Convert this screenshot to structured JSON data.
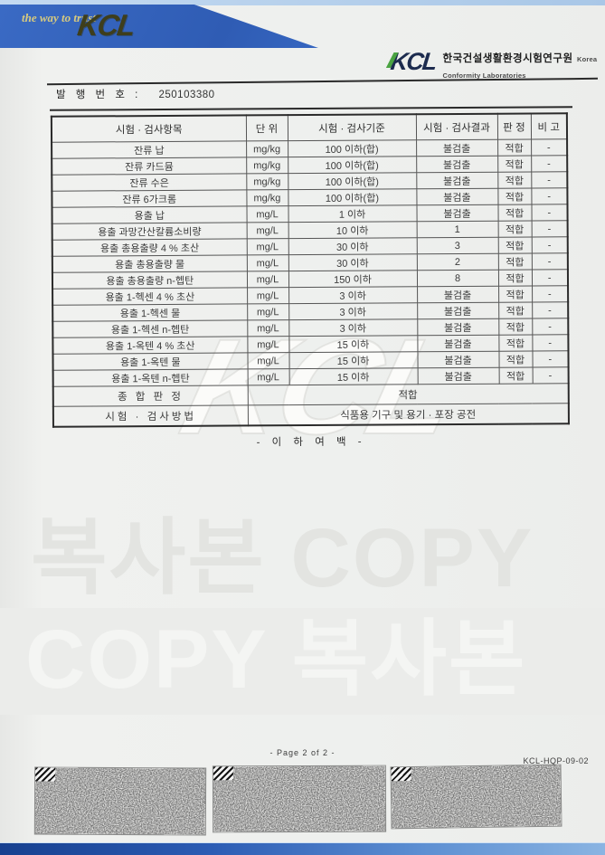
{
  "banner": {
    "tagline": "the way to trust",
    "logo_text": "KCL"
  },
  "org": {
    "logo_text": "KCL",
    "name_ko": "한국건설생활환경시험연구원",
    "name_en": "Korea Conformity Laboratories"
  },
  "issue": {
    "label": "발 행 번 호 :",
    "number": "250103380"
  },
  "table": {
    "headers": [
      "시험 · 검사항목",
      "단 위",
      "시험 · 검사기준",
      "시험 · 검사결과",
      "판 정",
      "비 고"
    ],
    "rows": [
      [
        "잔류 납",
        "mg/kg",
        "100 이하(합)",
        "불검출",
        "적합",
        "-"
      ],
      [
        "잔류 카드뮴",
        "mg/kg",
        "100 이하(합)",
        "불검출",
        "적합",
        "-"
      ],
      [
        "잔류 수은",
        "mg/kg",
        "100 이하(합)",
        "불검출",
        "적합",
        "-"
      ],
      [
        "잔류 6가크롬",
        "mg/kg",
        "100 이하(합)",
        "불검출",
        "적합",
        "-"
      ],
      [
        "용출 납",
        "mg/L",
        "1 이하",
        "불검출",
        "적합",
        "-"
      ],
      [
        "용출 과망간산칼륨소비량",
        "mg/L",
        "10 이하",
        "1",
        "적합",
        "-"
      ],
      [
        "용출 총용출량 4 % 초산",
        "mg/L",
        "30 이하",
        "3",
        "적합",
        "-"
      ],
      [
        "용출 총용출량 물",
        "mg/L",
        "30 이하",
        "2",
        "적합",
        "-"
      ],
      [
        "용출 총용출량 n-헵탄",
        "mg/L",
        "150 이하",
        "8",
        "적합",
        "-"
      ],
      [
        "용출 1-헥센 4 % 초산",
        "mg/L",
        "3 이하",
        "불검출",
        "적합",
        "-"
      ],
      [
        "용출 1-헥센 물",
        "mg/L",
        "3 이하",
        "불검출",
        "적합",
        "-"
      ],
      [
        "용출 1-헥센 n-헵탄",
        "mg/L",
        "3 이하",
        "불검출",
        "적합",
        "-"
      ],
      [
        "용출 1-옥텐 4 % 초산",
        "mg/L",
        "15 이하",
        "불검출",
        "적합",
        "-"
      ],
      [
        "용출 1-옥텐 물",
        "mg/L",
        "15 이하",
        "불검출",
        "적합",
        "-"
      ],
      [
        "용출 1-옥텐 n-헵탄",
        "mg/L",
        "15 이하",
        "불검출",
        "적합",
        "-"
      ]
    ],
    "summary_label": "종 합 판 정",
    "summary_value": "적합",
    "method_label": "시험 · 검사방법",
    "method_value": "식품용 기구 및 용기 · 포장 공전"
  },
  "notes": {
    "end_note": "- 이 하 여 백 -"
  },
  "watermark": {
    "kcl": "KCL",
    "copy_line1": "복사본 COPY",
    "copy_line2": "COPY 복사본"
  },
  "footer": {
    "page": "- Page 2 of 2 -",
    "doc_code": "KCL-HQP-09-02"
  },
  "colors": {
    "banner_blue": "#2f5cb4",
    "bottom_bar_blue": "#17408f",
    "logo_green": "#4aa341",
    "logo_navy": "#1c2b4e",
    "logo_olive": "#3e3e1c"
  }
}
